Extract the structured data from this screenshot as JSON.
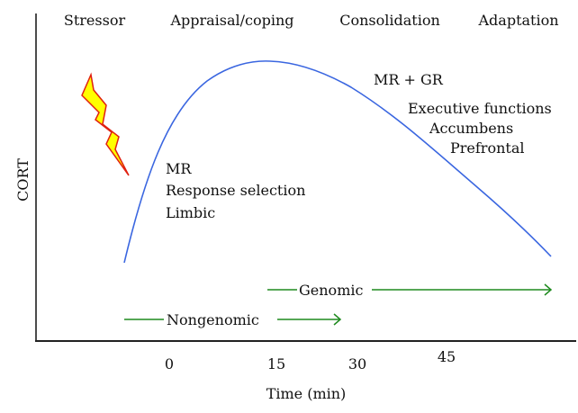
{
  "phases": [
    "Stressor",
    "Appraisal/coping",
    "Consolidation",
    "Adaptation"
  ],
  "y_axis_label": "CORT",
  "x_axis_label": "Time (min)",
  "x_ticks": [
    "0",
    "15",
    "30",
    "45"
  ],
  "early_annotation": [
    "MR",
    "Response selection",
    "Limbic"
  ],
  "late_annotation": [
    "MR + GR",
    "Executive functions",
    "Accumbens",
    "Prefrontal"
  ],
  "arrows": {
    "genomic": "Genomic",
    "nongenomic": "Nongenomic"
  },
  "colors": {
    "curve": "#3a66e0",
    "arrow": "#1e8a1e",
    "bolt_fill": "#ffff00",
    "bolt_stroke": "#e02010"
  },
  "icons": {
    "stressor": "lightning-bolt-icon"
  }
}
